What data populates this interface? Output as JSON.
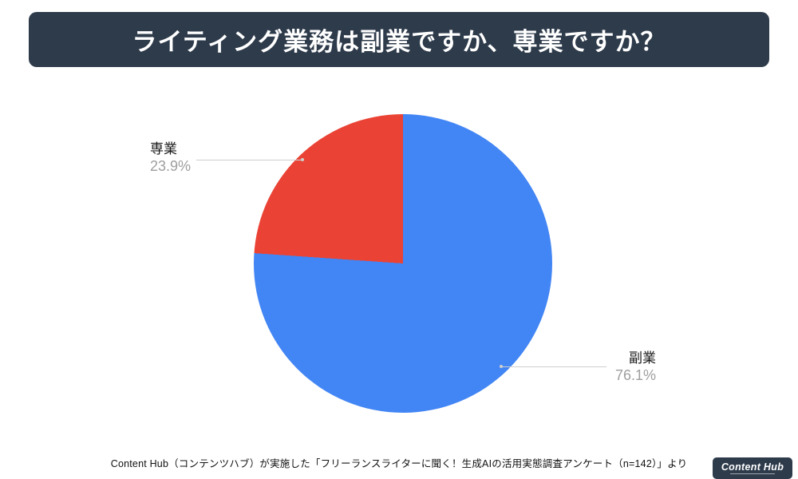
{
  "header": {
    "title": "ライティング業務は副業ですか、専業ですか？",
    "banner_color": "#2e3b4b"
  },
  "chart_data": {
    "type": "pie",
    "title": "ライティング業務は副業ですか、専業ですか？",
    "labels": [
      "副業",
      "専業"
    ],
    "values": [
      76.1,
      23.9
    ],
    "value_labels": [
      "76.1%",
      "23.9%"
    ],
    "colors": [
      "#4285f4",
      "#ea4335"
    ],
    "start_angle_deg": 0,
    "direction": "clockwise",
    "legend_position": "none",
    "callouts": [
      {
        "label": "専業",
        "pct": "23.9%",
        "side": "left"
      },
      {
        "label": "副業",
        "pct": "76.1%",
        "side": "right"
      }
    ]
  },
  "footer": {
    "source": "Content Hub（コンテンツハブ）が実施した「フリーランスライターに聞く！生成AIの活用実態調査アンケート（n=142）」より",
    "badge_label": "Content Hub"
  }
}
